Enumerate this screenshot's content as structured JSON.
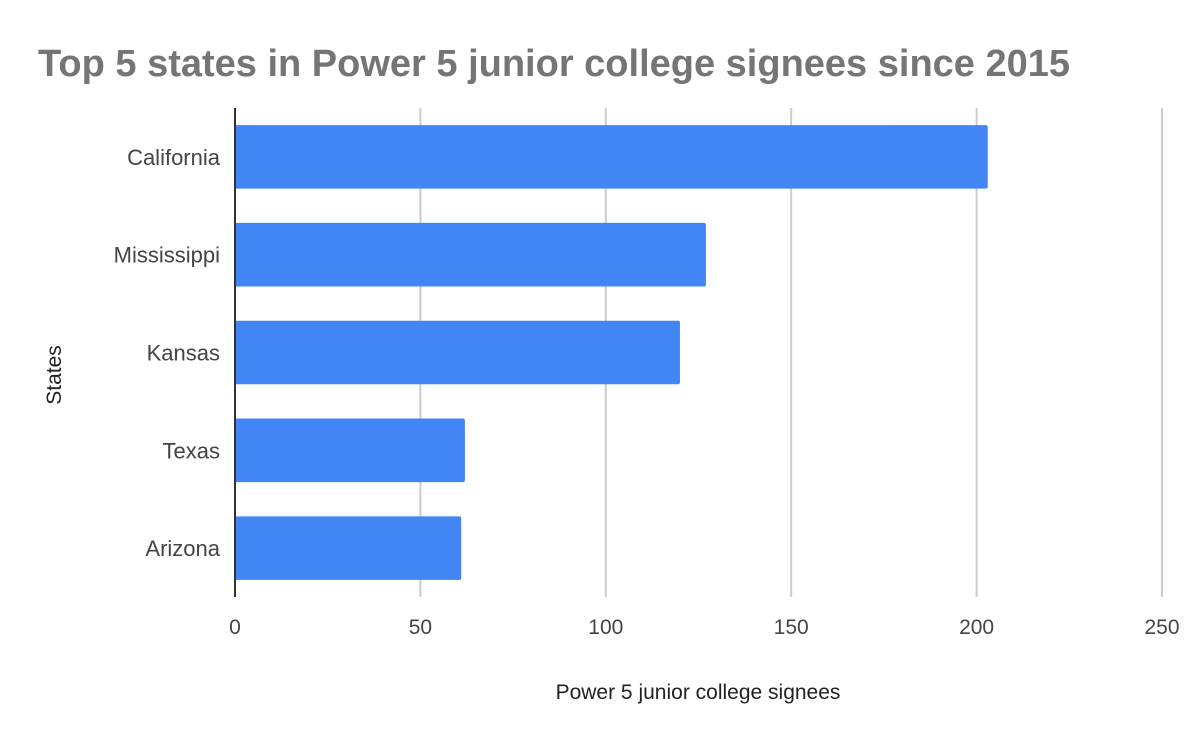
{
  "chart_data": {
    "type": "bar",
    "orientation": "horizontal",
    "title": "Top 5 states in Power 5 junior college signees since 2015",
    "xlabel": "Power 5 junior college signees",
    "ylabel": "States",
    "categories": [
      "California",
      "Mississippi",
      "Kansas",
      "Texas",
      "Arizona"
    ],
    "values": [
      203,
      127,
      120,
      62,
      61
    ],
    "xlim": [
      0,
      250
    ],
    "xticks": [
      "0",
      "50",
      "100",
      "150",
      "200",
      "250"
    ],
    "grid": true,
    "legend": "none",
    "bar_color": "#4285f4"
  }
}
